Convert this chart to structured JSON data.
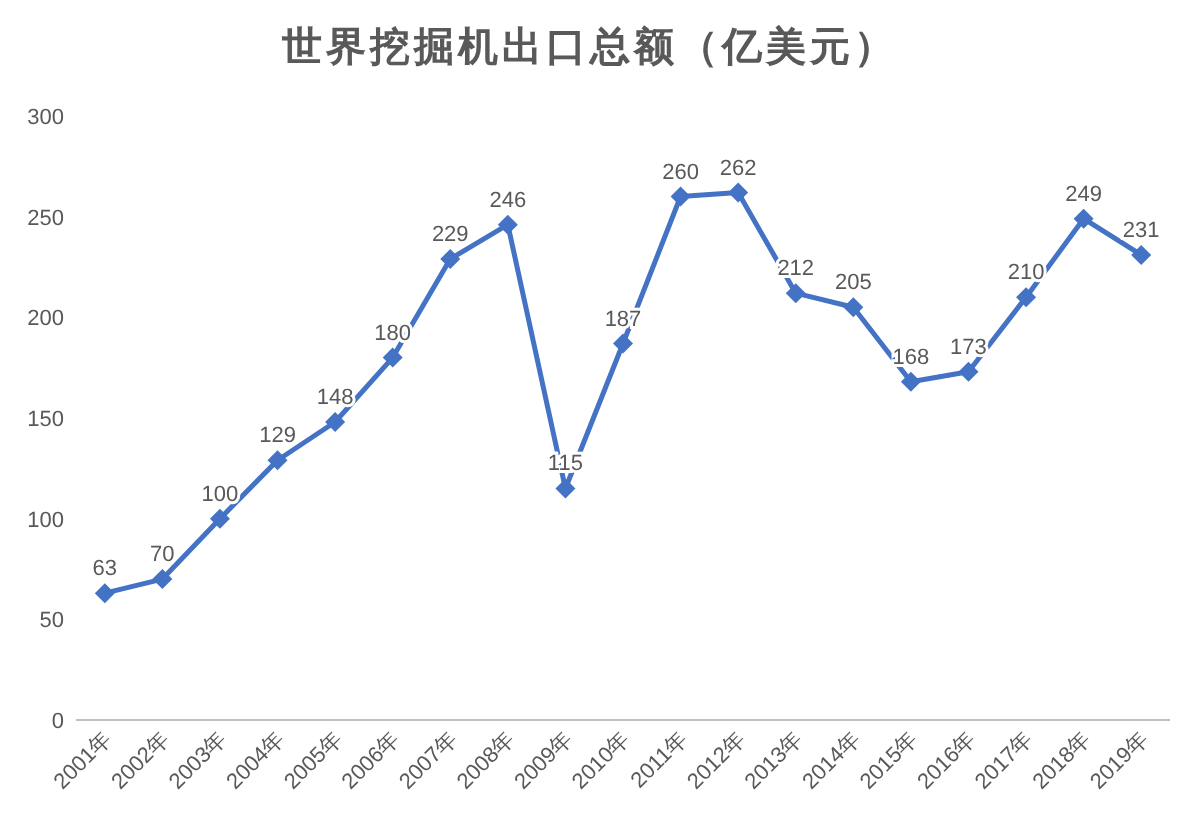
{
  "chart_data": {
    "type": "line",
    "title": "世界挖掘机出口总额（亿美元）",
    "categories": [
      "2001年",
      "2002年",
      "2003年",
      "2004年",
      "2005年",
      "2006年",
      "2007年",
      "2008年",
      "2009年",
      "2010年",
      "2011年",
      "2012年",
      "2013年",
      "2014年",
      "2015年",
      "2016年",
      "2017年",
      "2018年",
      "2019年"
    ],
    "values": [
      63,
      70,
      100,
      129,
      148,
      180,
      229,
      246,
      115,
      187,
      260,
      262,
      212,
      205,
      168,
      173,
      210,
      249,
      231
    ],
    "color": "#4472c4",
    "marker": "diamond",
    "line_style": "solid",
    "data_labels": true,
    "ylim": [
      0,
      300
    ],
    "yticks": [
      0,
      50,
      100,
      150,
      200,
      250,
      300
    ]
  }
}
